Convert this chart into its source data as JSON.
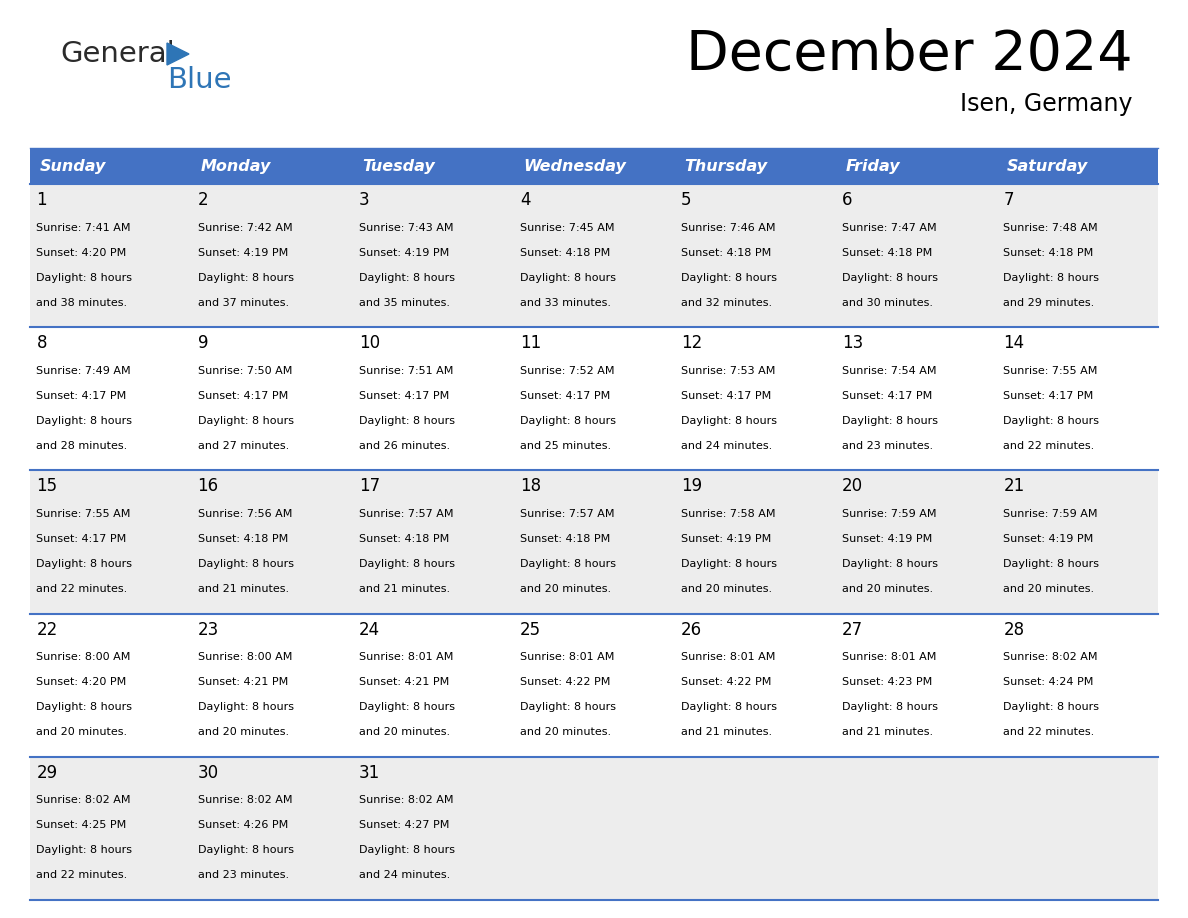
{
  "title": "December 2024",
  "subtitle": "Isen, Germany",
  "header_color": "#4472C4",
  "header_text_color": "#FFFFFF",
  "days_of_week": [
    "Sunday",
    "Monday",
    "Tuesday",
    "Wednesday",
    "Thursday",
    "Friday",
    "Saturday"
  ],
  "background_color": "#FFFFFF",
  "cell_bg_even": "#EDEDED",
  "cell_bg_odd": "#FFFFFF",
  "line_color": "#4472C4",
  "text_color": "#000000",
  "logo_general_color": "#2B2B2B",
  "logo_blue_color": "#2E75B6",
  "calendar_data": [
    [
      {
        "day": 1,
        "sunrise": "7:41 AM",
        "sunset": "4:20 PM",
        "daylight_hours": 8,
        "daylight_minutes": 38
      },
      {
        "day": 2,
        "sunrise": "7:42 AM",
        "sunset": "4:19 PM",
        "daylight_hours": 8,
        "daylight_minutes": 37
      },
      {
        "day": 3,
        "sunrise": "7:43 AM",
        "sunset": "4:19 PM",
        "daylight_hours": 8,
        "daylight_minutes": 35
      },
      {
        "day": 4,
        "sunrise": "7:45 AM",
        "sunset": "4:18 PM",
        "daylight_hours": 8,
        "daylight_minutes": 33
      },
      {
        "day": 5,
        "sunrise": "7:46 AM",
        "sunset": "4:18 PM",
        "daylight_hours": 8,
        "daylight_minutes": 32
      },
      {
        "day": 6,
        "sunrise": "7:47 AM",
        "sunset": "4:18 PM",
        "daylight_hours": 8,
        "daylight_minutes": 30
      },
      {
        "day": 7,
        "sunrise": "7:48 AM",
        "sunset": "4:18 PM",
        "daylight_hours": 8,
        "daylight_minutes": 29
      }
    ],
    [
      {
        "day": 8,
        "sunrise": "7:49 AM",
        "sunset": "4:17 PM",
        "daylight_hours": 8,
        "daylight_minutes": 28
      },
      {
        "day": 9,
        "sunrise": "7:50 AM",
        "sunset": "4:17 PM",
        "daylight_hours": 8,
        "daylight_minutes": 27
      },
      {
        "day": 10,
        "sunrise": "7:51 AM",
        "sunset": "4:17 PM",
        "daylight_hours": 8,
        "daylight_minutes": 26
      },
      {
        "day": 11,
        "sunrise": "7:52 AM",
        "sunset": "4:17 PM",
        "daylight_hours": 8,
        "daylight_minutes": 25
      },
      {
        "day": 12,
        "sunrise": "7:53 AM",
        "sunset": "4:17 PM",
        "daylight_hours": 8,
        "daylight_minutes": 24
      },
      {
        "day": 13,
        "sunrise": "7:54 AM",
        "sunset": "4:17 PM",
        "daylight_hours": 8,
        "daylight_minutes": 23
      },
      {
        "day": 14,
        "sunrise": "7:55 AM",
        "sunset": "4:17 PM",
        "daylight_hours": 8,
        "daylight_minutes": 22
      }
    ],
    [
      {
        "day": 15,
        "sunrise": "7:55 AM",
        "sunset": "4:17 PM",
        "daylight_hours": 8,
        "daylight_minutes": 22
      },
      {
        "day": 16,
        "sunrise": "7:56 AM",
        "sunset": "4:18 PM",
        "daylight_hours": 8,
        "daylight_minutes": 21
      },
      {
        "day": 17,
        "sunrise": "7:57 AM",
        "sunset": "4:18 PM",
        "daylight_hours": 8,
        "daylight_minutes": 21
      },
      {
        "day": 18,
        "sunrise": "7:57 AM",
        "sunset": "4:18 PM",
        "daylight_hours": 8,
        "daylight_minutes": 20
      },
      {
        "day": 19,
        "sunrise": "7:58 AM",
        "sunset": "4:19 PM",
        "daylight_hours": 8,
        "daylight_minutes": 20
      },
      {
        "day": 20,
        "sunrise": "7:59 AM",
        "sunset": "4:19 PM",
        "daylight_hours": 8,
        "daylight_minutes": 20
      },
      {
        "day": 21,
        "sunrise": "7:59 AM",
        "sunset": "4:19 PM",
        "daylight_hours": 8,
        "daylight_minutes": 20
      }
    ],
    [
      {
        "day": 22,
        "sunrise": "8:00 AM",
        "sunset": "4:20 PM",
        "daylight_hours": 8,
        "daylight_minutes": 20
      },
      {
        "day": 23,
        "sunrise": "8:00 AM",
        "sunset": "4:21 PM",
        "daylight_hours": 8,
        "daylight_minutes": 20
      },
      {
        "day": 24,
        "sunrise": "8:01 AM",
        "sunset": "4:21 PM",
        "daylight_hours": 8,
        "daylight_minutes": 20
      },
      {
        "day": 25,
        "sunrise": "8:01 AM",
        "sunset": "4:22 PM",
        "daylight_hours": 8,
        "daylight_minutes": 20
      },
      {
        "day": 26,
        "sunrise": "8:01 AM",
        "sunset": "4:22 PM",
        "daylight_hours": 8,
        "daylight_minutes": 21
      },
      {
        "day": 27,
        "sunrise": "8:01 AM",
        "sunset": "4:23 PM",
        "daylight_hours": 8,
        "daylight_minutes": 21
      },
      {
        "day": 28,
        "sunrise": "8:02 AM",
        "sunset": "4:24 PM",
        "daylight_hours": 8,
        "daylight_minutes": 22
      }
    ],
    [
      {
        "day": 29,
        "sunrise": "8:02 AM",
        "sunset": "4:25 PM",
        "daylight_hours": 8,
        "daylight_minutes": 22
      },
      {
        "day": 30,
        "sunrise": "8:02 AM",
        "sunset": "4:26 PM",
        "daylight_hours": 8,
        "daylight_minutes": 23
      },
      {
        "day": 31,
        "sunrise": "8:02 AM",
        "sunset": "4:27 PM",
        "daylight_hours": 8,
        "daylight_minutes": 24
      },
      null,
      null,
      null,
      null
    ]
  ]
}
